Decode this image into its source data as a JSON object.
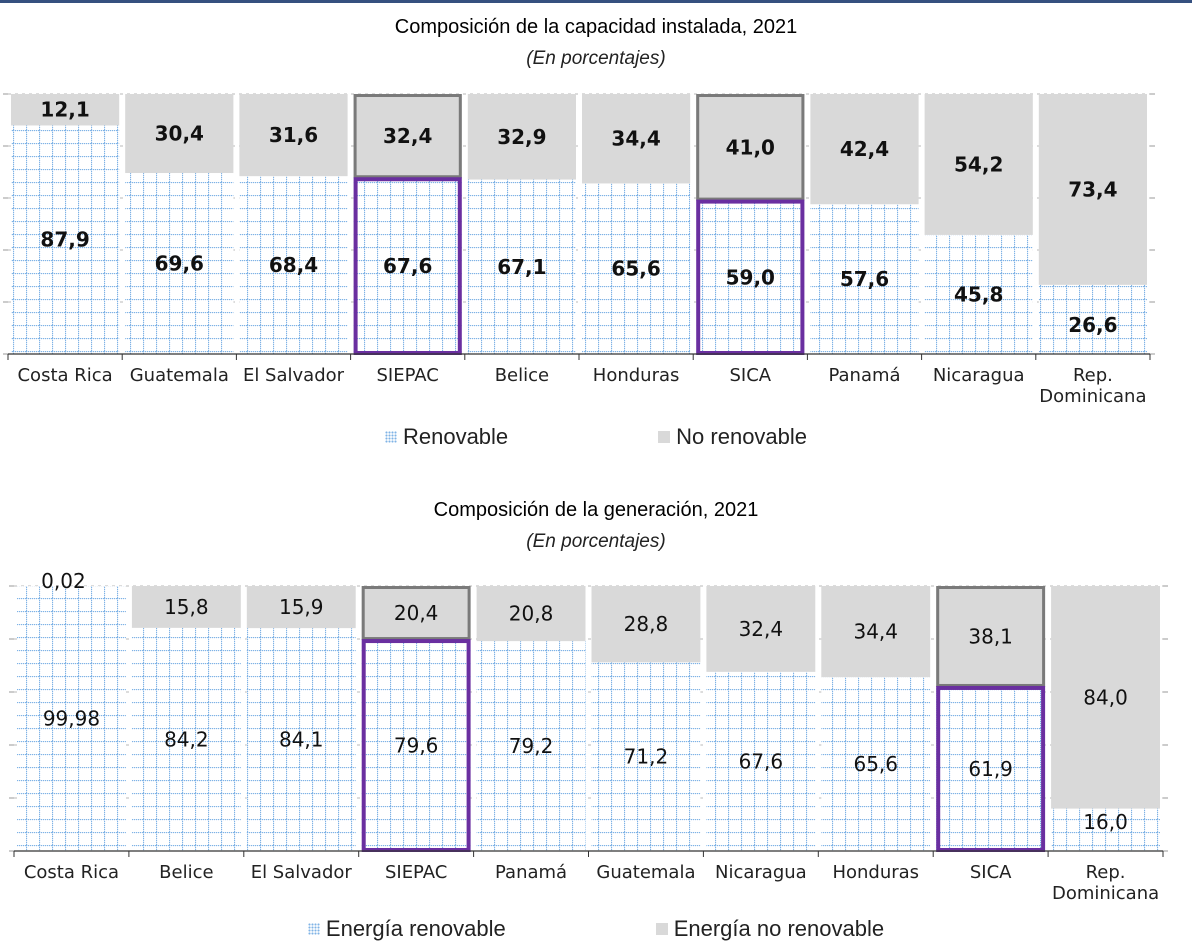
{
  "chart_data": [
    {
      "type": "bar",
      "stacked": true,
      "percent": true,
      "title": "Composición de la capacidad instalada, 2021",
      "subtitle": "(En porcentajes)",
      "categories": [
        "Costa Rica",
        "Guatemala",
        "El Salvador",
        "SIEPAC",
        "Belice",
        "Honduras",
        "SICA",
        "Panamá",
        "Nicaragua",
        "Rep. Dominicana"
      ],
      "series": [
        {
          "name": "Renovable",
          "values": [
            87.9,
            69.6,
            68.4,
            67.6,
            67.1,
            65.6,
            59.0,
            57.6,
            45.8,
            26.6
          ],
          "labels": [
            "87,9",
            "69,6",
            "68,4",
            "67,6",
            "67,1",
            "65,6",
            "59,0",
            "57,6",
            "45,8",
            "26,6"
          ]
        },
        {
          "name": "No renovable",
          "values": [
            12.1,
            30.4,
            31.6,
            32.4,
            32.9,
            34.4,
            41.0,
            42.4,
            54.2,
            73.4
          ],
          "labels": [
            "12,1",
            "30,4",
            "31,6",
            "32,4",
            "32,9",
            "34,4",
            "41,0",
            "42,4",
            "54,2",
            "73,4"
          ]
        }
      ],
      "highlighted": [
        "SIEPAC",
        "SICA"
      ],
      "ylim": [
        0,
        100
      ],
      "legend": "bottom",
      "grid": true
    },
    {
      "type": "bar",
      "stacked": true,
      "percent": true,
      "title": "Composición de la generación, 2021",
      "subtitle": "(En porcentajes)",
      "categories": [
        "Costa Rica",
        "Belice",
        "El Salvador",
        "SIEPAC",
        "Panamá",
        "Guatemala",
        "Nicaragua",
        "Honduras",
        "SICA",
        "Rep. Dominicana"
      ],
      "series": [
        {
          "name": "Energía renovable",
          "values": [
            99.98,
            84.2,
            84.1,
            79.6,
            79.2,
            71.2,
            67.6,
            65.6,
            61.9,
            16.0
          ],
          "labels": [
            "99,98",
            "84,2",
            "84,1",
            "79,6",
            "79,2",
            "71,2",
            "67,6",
            "65,6",
            "61,9",
            "16,0"
          ]
        },
        {
          "name": "Energía no renovable",
          "values": [
            0.02,
            15.8,
            15.9,
            20.4,
            20.8,
            28.8,
            32.4,
            34.4,
            38.1,
            84.0
          ],
          "labels": [
            "0,02",
            "15,8",
            "15,9",
            "20,4",
            "20,8",
            "28,8",
            "32,4",
            "34,4",
            "38,1",
            "84,0"
          ]
        }
      ],
      "highlighted": [
        "SIEPAC",
        "SICA"
      ],
      "ylim": [
        0,
        100
      ],
      "legend": "bottom",
      "grid": true
    }
  ],
  "colors": {
    "renewable_dots": "#7fb3e6",
    "non_renewable": "#d9d9d9",
    "highlight_outline": "#6a2fa0",
    "highlight_top_outline": "#7a7a7a",
    "top_rule": "#35507f"
  }
}
